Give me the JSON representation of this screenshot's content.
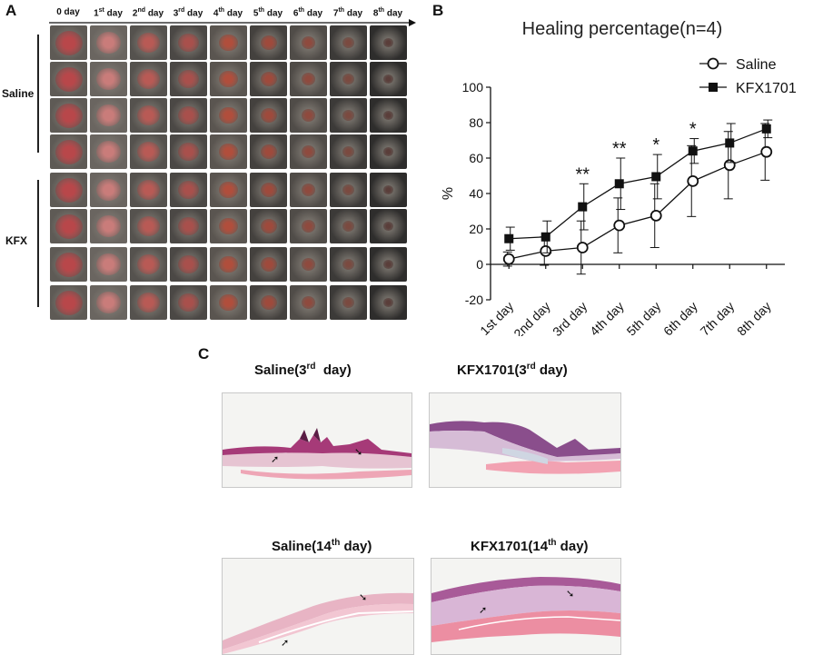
{
  "panel_a": {
    "letter": "A",
    "days": [
      {
        "base": "0 day",
        "sup": ""
      },
      {
        "base": "1",
        "sup": "st",
        "tail": " day"
      },
      {
        "base": "2",
        "sup": "nd",
        "tail": " day"
      },
      {
        "base": "3",
        "sup": "rd",
        "tail": " day"
      },
      {
        "base": "4",
        "sup": "th",
        "tail": " day"
      },
      {
        "base": "5",
        "sup": "th",
        "tail": " day"
      },
      {
        "base": "6",
        "sup": "th",
        "tail": " day"
      },
      {
        "base": "7",
        "sup": "th",
        "tail": " day"
      },
      {
        "base": "8",
        "sup": "th",
        "tail": " day"
      }
    ],
    "groups": [
      "Saline",
      "KFX"
    ],
    "rows_per_group": 4
  },
  "panel_b": {
    "letter": "B",
    "chart_data": {
      "type": "line",
      "title": "Healing percentage(n=4)",
      "xlabel": "",
      "ylabel": "%",
      "categories": [
        "1st day",
        "2nd day",
        "3rd day",
        "4th day",
        "5th day",
        "6th day",
        "7th day",
        "8th day"
      ],
      "ylim": [
        -20,
        100
      ],
      "yticks": [
        -20,
        0,
        20,
        40,
        60,
        80,
        100
      ],
      "legend_position": "top-right",
      "series": [
        {
          "name": "Saline",
          "marker": "open-circle",
          "values": [
            3,
            7.5,
            9.5,
            22,
            27.5,
            47,
            56,
            63.5
          ],
          "errors": [
            4,
            8,
            15,
            15.5,
            18,
            20,
            19,
            16
          ]
        },
        {
          "name": "KFX1701",
          "marker": "filled-square",
          "values": [
            14.5,
            15.5,
            32.5,
            45.5,
            49.5,
            64,
            68.5,
            76.5
          ],
          "errors": [
            6.5,
            9,
            13,
            14.5,
            12.5,
            7,
            11,
            5
          ]
        }
      ],
      "significance": [
        {
          "category": "3rd day",
          "label": "**"
        },
        {
          "category": "4th day",
          "label": "**"
        },
        {
          "category": "5th day",
          "label": "*"
        },
        {
          "category": "6th day",
          "label": "*"
        }
      ]
    }
  },
  "panel_c": {
    "letter": "C",
    "images": [
      {
        "base": "Saline(3",
        "sup": "rd",
        "tail": "  day)"
      },
      {
        "base": "KFX1701(3",
        "sup": "rd",
        "tail": " day)"
      },
      {
        "base": "Saline(14",
        "sup": "th",
        "tail": " day)"
      },
      {
        "base": "KFX1701(14",
        "sup": "th",
        "tail": " day)"
      }
    ]
  }
}
